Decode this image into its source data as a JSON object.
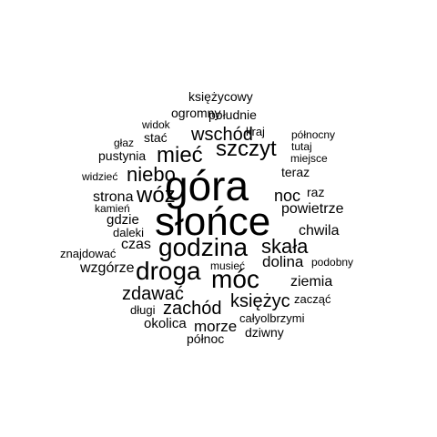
{
  "colors": {
    "background": "#ffffff",
    "text": "#000000"
  },
  "words": [
    {
      "text": "księżycowy",
      "weight": 1
    },
    {
      "text": "ogromny",
      "weight": 1
    },
    {
      "text": "południe",
      "weight": 1
    },
    {
      "text": "widok",
      "weight": 1
    },
    {
      "text": "kraj",
      "weight": 1
    },
    {
      "text": "północny",
      "weight": 1
    },
    {
      "text": "głaz",
      "weight": 1
    },
    {
      "text": "stać",
      "weight": 1
    },
    {
      "text": "wschód",
      "weight": 3
    },
    {
      "text": "tutaj",
      "weight": 1
    },
    {
      "text": "pustynia",
      "weight": 1
    },
    {
      "text": "mieć",
      "weight": 4
    },
    {
      "text": "szczyt",
      "weight": 4
    },
    {
      "text": "miejsce",
      "weight": 1
    },
    {
      "text": "teraz",
      "weight": 1
    },
    {
      "text": "widzieć",
      "weight": 1
    },
    {
      "text": "niebo",
      "weight": 3
    },
    {
      "text": "góra",
      "weight": 10
    },
    {
      "text": "noc",
      "weight": 2
    },
    {
      "text": "raz",
      "weight": 1
    },
    {
      "text": "strona",
      "weight": 2
    },
    {
      "text": "wóz",
      "weight": 4
    },
    {
      "text": "kamień",
      "weight": 1
    },
    {
      "text": "powietrze",
      "weight": 2
    },
    {
      "text": "gdzie",
      "weight": 2
    },
    {
      "text": "słońce",
      "weight": 10
    },
    {
      "text": "daleki",
      "weight": 1
    },
    {
      "text": "chwila",
      "weight": 2
    },
    {
      "text": "czas",
      "weight": 2
    },
    {
      "text": "godzina",
      "weight": 5
    },
    {
      "text": "skała",
      "weight": 4
    },
    {
      "text": "znajdować",
      "weight": 1
    },
    {
      "text": "dolina",
      "weight": 2
    },
    {
      "text": "wzgórze",
      "weight": 2
    },
    {
      "text": "droga",
      "weight": 5
    },
    {
      "text": "musieć",
      "weight": 1
    },
    {
      "text": "podobny",
      "weight": 1
    },
    {
      "text": "móc",
      "weight": 5
    },
    {
      "text": "ziemia",
      "weight": 2
    },
    {
      "text": "zdawać",
      "weight": 3
    },
    {
      "text": "księżyc",
      "weight": 3
    },
    {
      "text": "zacząć",
      "weight": 1
    },
    {
      "text": "zachód",
      "weight": 3
    },
    {
      "text": "długi",
      "weight": 1
    },
    {
      "text": "całyolbrzymi",
      "weight": 1
    },
    {
      "text": "okolica",
      "weight": 1
    },
    {
      "text": "morze",
      "weight": 2
    },
    {
      "text": "dziwny",
      "weight": 1
    },
    {
      "text": "północ",
      "weight": 1
    }
  ]
}
